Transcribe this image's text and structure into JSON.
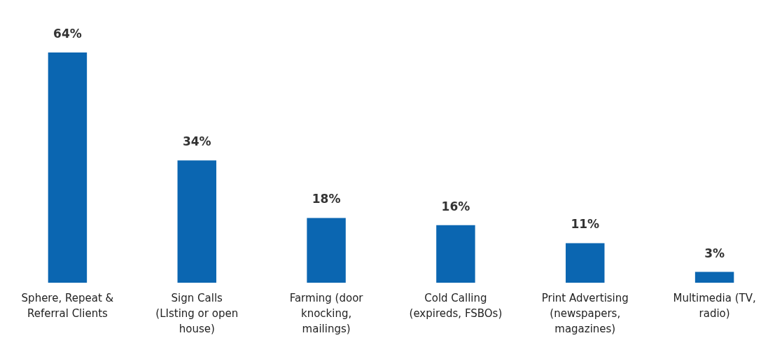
{
  "chart_data": {
    "type": "bar",
    "categories": [
      "Sphere, Repeat & Referral Clients",
      "Sign Calls (LIsting or open house)",
      "Farming (door knocking, mailings)",
      "Cold Calling (expireds, FSBOs)",
      "Print Advertising (newspapers, magazines)",
      "Multimedia (TV, radio)"
    ],
    "values": [
      64,
      34,
      18,
      16,
      11,
      3
    ],
    "value_labels": [
      "64%",
      "34%",
      "18%",
      "16%",
      "11%",
      "3%"
    ],
    "color": "#0b66b1"
  }
}
